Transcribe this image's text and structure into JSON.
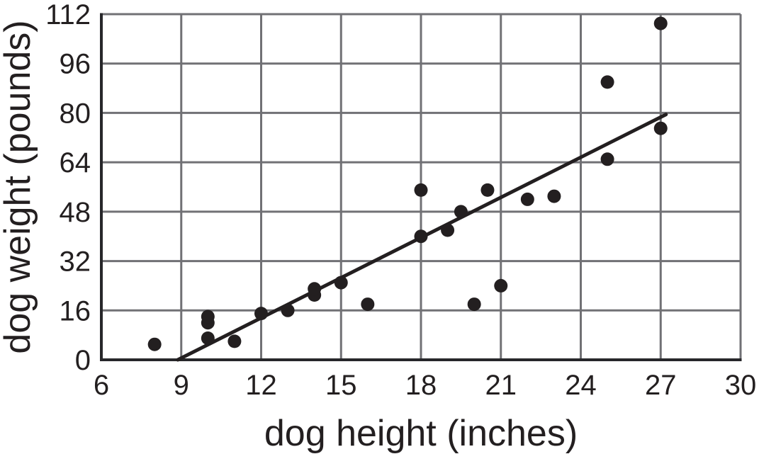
{
  "chart_data": {
    "type": "scatter",
    "title": "",
    "xlabel": "dog height (inches)",
    "ylabel": "dog weight (pounds)",
    "xlim": [
      6,
      30
    ],
    "ylim": [
      0,
      112
    ],
    "xticks": [
      6,
      9,
      12,
      15,
      18,
      21,
      24,
      27,
      30
    ],
    "yticks": [
      0,
      16,
      32,
      48,
      64,
      80,
      96,
      112
    ],
    "grid": "on",
    "legend": "none",
    "points": [
      [
        8,
        5
      ],
      [
        10,
        7
      ],
      [
        10,
        12
      ],
      [
        10,
        14
      ],
      [
        11,
        6
      ],
      [
        12,
        15
      ],
      [
        13,
        16
      ],
      [
        14,
        21
      ],
      [
        14,
        23
      ],
      [
        15,
        25
      ],
      [
        16,
        18
      ],
      [
        18,
        40
      ],
      [
        18,
        55
      ],
      [
        19,
        42
      ],
      [
        19.5,
        48
      ],
      [
        20,
        18
      ],
      [
        20.5,
        55
      ],
      [
        21,
        24
      ],
      [
        22,
        52
      ],
      [
        23,
        53
      ],
      [
        25,
        65
      ],
      [
        25,
        90
      ],
      [
        27,
        75
      ],
      [
        27,
        109
      ]
    ],
    "trend_line": {
      "x_start": 8.87,
      "y_start": 0,
      "x_end": 27.2,
      "y_end": 79.5
    },
    "colors": {
      "point": "#231f20",
      "trend_line": "#231f20",
      "grid": "#717175",
      "axis": "#27272a",
      "text": "#231f20",
      "background": "#ffffff"
    }
  }
}
